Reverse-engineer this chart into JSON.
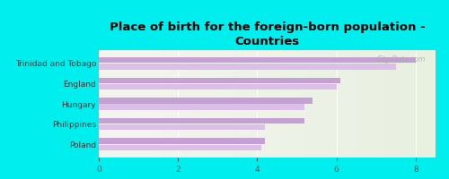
{
  "title": "Place of birth for the foreign-born population -\nCountries",
  "categories": [
    "Trinidad and Tobago",
    "England",
    "Hungary",
    "Philippines",
    "Poland"
  ],
  "values1": [
    8.0,
    6.1,
    5.4,
    5.2,
    4.2
  ],
  "values2": [
    7.5,
    6.0,
    5.2,
    4.2,
    4.1
  ],
  "bar_color1": "#c4a0d4",
  "bar_color2": "#dbbfe8",
  "background_color": "#00EEEE",
  "plot_bg_left": "#f5f5f0",
  "plot_bg_right": "#e8f0e0",
  "xlim": [
    0,
    8.5
  ],
  "xticks": [
    0,
    2,
    4,
    6,
    8
  ],
  "bar_height": 0.28,
  "title_fontsize": 9.5,
  "label_fontsize": 6.5
}
